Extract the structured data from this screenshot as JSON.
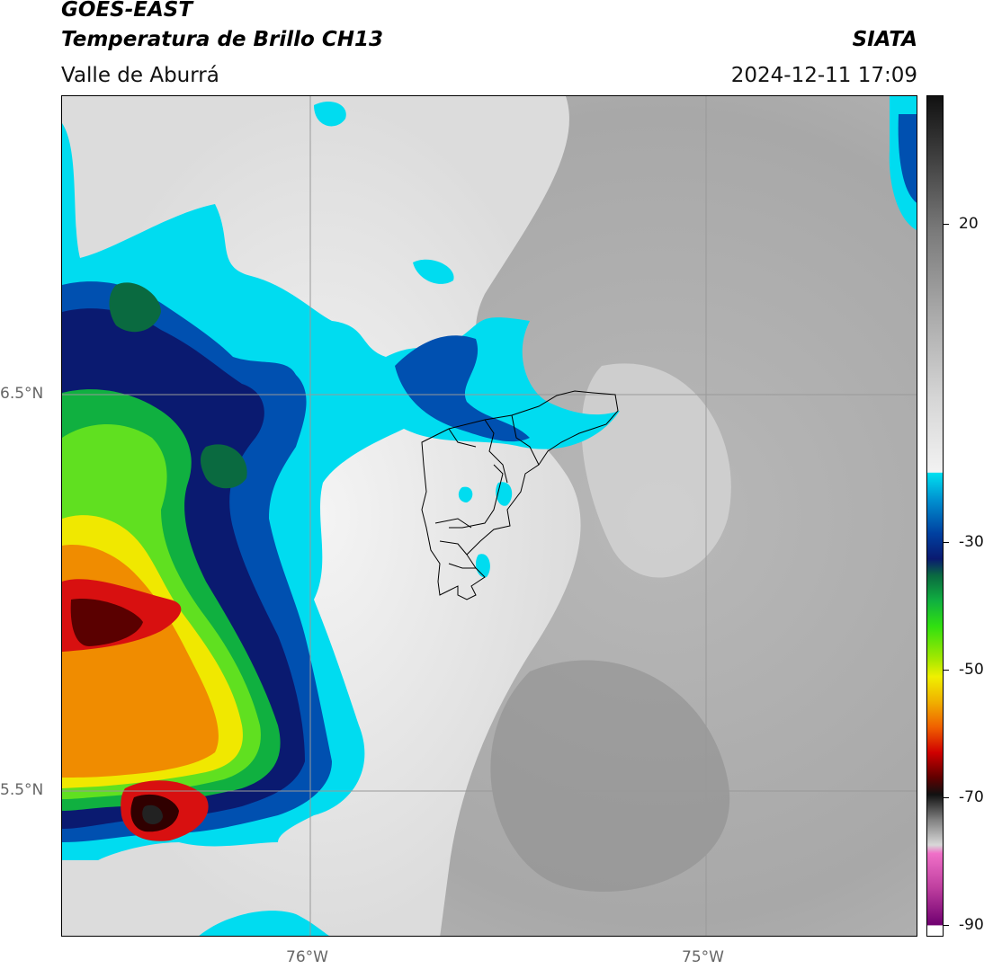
{
  "header": {
    "satellite": "GOES-EAST",
    "product": "Temperatura de Brillo CH13",
    "region": "Valle de Aburrá",
    "agency": "SIATA",
    "datetime": "2024-12-11 17:09"
  },
  "map": {
    "lat_labels": [
      "6.5°N",
      "5.5°N"
    ],
    "lon_labels": [
      "76°W",
      "75°W"
    ],
    "background_color": "#c8c8c8"
  },
  "colorbar": {
    "tick_labels": [
      "20",
      "-30",
      "-50",
      "-70",
      "-90"
    ],
    "palette": {
      "warm_gray": "#9a9a9a",
      "light": "#f0f0f0",
      "cyan": "#00d8f0",
      "blue": "#0040a0",
      "navy": "#0a1a70",
      "green": "#10c010",
      "yellow": "#f0f000",
      "orange": "#f08000",
      "red": "#d00000",
      "dark": "#300000",
      "pink": "#e070c0",
      "purple": "#700070"
    }
  }
}
